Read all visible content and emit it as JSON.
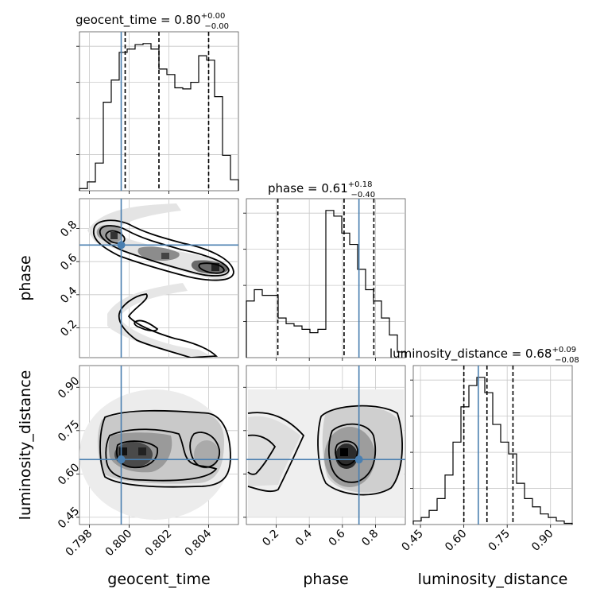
{
  "chart_data": {
    "type": "corner",
    "parameters": [
      "geocent_time",
      "phase",
      "luminosity_distance"
    ],
    "titles": [
      {
        "param": "geocent_time",
        "text": "geocent_time = 0.80",
        "plus": "+0.00",
        "minus": "−0.00"
      },
      {
        "param": "phase",
        "text": "phase = 0.61",
        "plus": "+0.18",
        "minus": "−0.40"
      },
      {
        "param": "luminosity_distance",
        "text": "luminosity_distance = 0.68",
        "plus": "+0.09",
        "minus": "−0.08"
      }
    ],
    "ranges": {
      "geocent_time": [
        0.7975,
        0.8055
      ],
      "phase": [
        0.02,
        0.98
      ],
      "luminosity_distance": [
        0.425,
        0.975
      ]
    },
    "ticks": {
      "geocent_time": {
        "values": [
          0.798,
          0.8,
          0.802,
          0.804
        ],
        "labels": [
          "0.798",
          "0.800",
          "0.802",
          "0.804"
        ]
      },
      "phase": {
        "values": [
          0.2,
          0.4,
          0.6,
          0.8
        ],
        "labels": [
          "0.2",
          "0.4",
          "0.6",
          "0.8"
        ]
      },
      "luminosity_distance": {
        "values": [
          0.45,
          0.6,
          0.75,
          0.9
        ],
        "labels": [
          "0.45",
          "0.60",
          "0.75",
          "0.90"
        ]
      }
    },
    "truths": {
      "geocent_time": 0.7996,
      "phase": 0.7,
      "luminosity_distance": 0.65
    },
    "quantiles": {
      "geocent_time": [
        0.7998,
        0.8015,
        0.804
      ],
      "phase": [
        0.21,
        0.61,
        0.79
      ],
      "luminosity_distance": [
        0.6,
        0.68,
        0.77
      ]
    },
    "histograms": {
      "geocent_time": {
        "edges": [
          0.7975,
          0.7979,
          0.7983,
          0.7987,
          0.7991,
          0.7995,
          0.7999,
          0.8003,
          0.8007,
          0.8011,
          0.8015,
          0.8019,
          0.8023,
          0.8027,
          0.8031,
          0.8035,
          0.8039,
          0.8043,
          0.8047,
          0.8051,
          0.8055
        ],
        "counts": [
          2,
          8,
          25,
          80,
          100,
          125,
          128,
          132,
          133,
          128,
          110,
          105,
          93,
          92,
          98,
          122,
          118,
          85,
          32,
          10
        ]
      },
      "phase": {
        "edges": [
          0.02,
          0.068,
          0.116,
          0.164,
          0.212,
          0.26,
          0.308,
          0.356,
          0.404,
          0.452,
          0.5,
          0.548,
          0.596,
          0.644,
          0.692,
          0.74,
          0.788,
          0.836,
          0.884,
          0.932,
          0.98
        ],
        "counts": [
          50,
          60,
          55,
          55,
          35,
          30,
          28,
          25,
          22,
          25,
          130,
          125,
          110,
          100,
          78,
          60,
          50,
          35,
          20,
          5
        ]
      },
      "luminosity_distance": {
        "edges": [
          0.425,
          0.4525,
          0.48,
          0.5075,
          0.535,
          0.5625,
          0.59,
          0.6175,
          0.645,
          0.6725,
          0.7,
          0.7275,
          0.755,
          0.7825,
          0.81,
          0.8375,
          0.865,
          0.8925,
          0.92,
          0.9475,
          0.975
        ],
        "counts": [
          3,
          6,
          12,
          22,
          42,
          70,
          100,
          118,
          125,
          112,
          85,
          70,
          60,
          35,
          22,
          15,
          9,
          6,
          3,
          1
        ]
      }
    }
  }
}
